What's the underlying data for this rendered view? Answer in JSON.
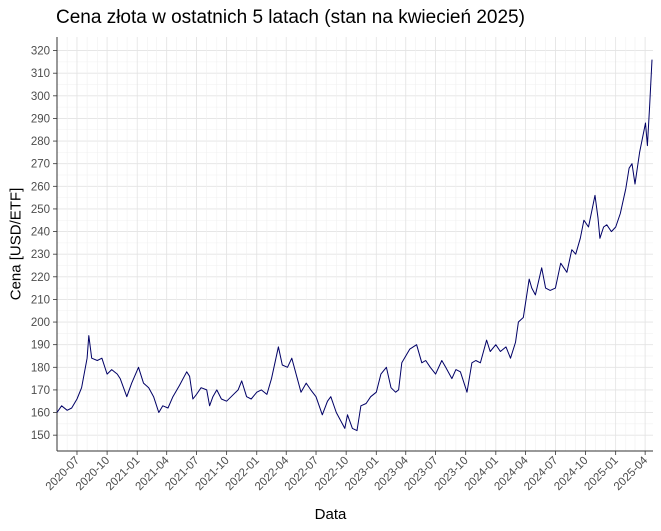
{
  "chart_data": {
    "type": "line",
    "title": "Cena złota w ostatnich 5 latach (stan na kwiecień 2025)",
    "xlabel": "Data",
    "ylabel": "Cena [USD/ETF]",
    "xlim": [
      "2020-05-01",
      "2025-04-25"
    ],
    "ylim": [
      143,
      326
    ],
    "yticks": [
      150,
      160,
      170,
      180,
      190,
      200,
      210,
      220,
      230,
      240,
      250,
      260,
      270,
      280,
      290,
      300,
      310,
      320
    ],
    "xticks": [
      "2020-07",
      "2020-10",
      "2021-01",
      "2021-04",
      "2021-07",
      "2021-10",
      "2022-01",
      "2022-04",
      "2022-07",
      "2022-10",
      "2023-01",
      "2023-04",
      "2023-07",
      "2023-10",
      "2024-01",
      "2024-04",
      "2024-07",
      "2024-10",
      "2025-01",
      "2025-04"
    ],
    "grid": true,
    "legend": "none",
    "series": [
      {
        "color": "#000066",
        "points": [
          [
            "2020-05-01",
            160
          ],
          [
            "2020-05-15",
            163
          ],
          [
            "2020-06-01",
            161
          ],
          [
            "2020-06-15",
            162
          ],
          [
            "2020-07-01",
            166
          ],
          [
            "2020-07-15",
            171
          ],
          [
            "2020-08-01",
            184
          ],
          [
            "2020-08-06",
            194
          ],
          [
            "2020-08-15",
            184
          ],
          [
            "2020-09-01",
            183
          ],
          [
            "2020-09-15",
            184
          ],
          [
            "2020-10-01",
            177
          ],
          [
            "2020-10-15",
            179
          ],
          [
            "2020-11-01",
            177
          ],
          [
            "2020-11-10",
            175
          ],
          [
            "2020-11-30",
            167
          ],
          [
            "2020-12-15",
            173
          ],
          [
            "2021-01-05",
            180
          ],
          [
            "2021-01-20",
            173
          ],
          [
            "2021-02-05",
            171
          ],
          [
            "2021-02-20",
            167
          ],
          [
            "2021-03-08",
            160
          ],
          [
            "2021-03-20",
            163
          ],
          [
            "2021-04-05",
            162
          ],
          [
            "2021-04-20",
            167
          ],
          [
            "2021-05-10",
            172
          ],
          [
            "2021-06-01",
            178
          ],
          [
            "2021-06-10",
            176
          ],
          [
            "2021-06-20",
            166
          ],
          [
            "2021-07-01",
            168
          ],
          [
            "2021-07-15",
            171
          ],
          [
            "2021-08-01",
            170
          ],
          [
            "2021-08-10",
            163
          ],
          [
            "2021-08-20",
            167
          ],
          [
            "2021-09-01",
            170
          ],
          [
            "2021-09-15",
            166
          ],
          [
            "2021-10-01",
            165
          ],
          [
            "2021-10-15",
            167
          ],
          [
            "2021-11-05",
            170
          ],
          [
            "2021-11-16",
            174
          ],
          [
            "2021-12-01",
            167
          ],
          [
            "2021-12-15",
            166
          ],
          [
            "2022-01-01",
            169
          ],
          [
            "2022-01-15",
            170
          ],
          [
            "2022-02-01",
            168
          ],
          [
            "2022-02-15",
            175
          ],
          [
            "2022-03-08",
            189
          ],
          [
            "2022-03-20",
            181
          ],
          [
            "2022-04-05",
            180
          ],
          [
            "2022-04-18",
            184
          ],
          [
            "2022-05-01",
            177
          ],
          [
            "2022-05-16",
            169
          ],
          [
            "2022-06-01",
            173
          ],
          [
            "2022-06-15",
            170
          ],
          [
            "2022-07-01",
            167
          ],
          [
            "2022-07-20",
            159
          ],
          [
            "2022-08-05",
            165
          ],
          [
            "2022-08-15",
            167
          ],
          [
            "2022-09-01",
            160
          ],
          [
            "2022-09-27",
            153
          ],
          [
            "2022-10-05",
            159
          ],
          [
            "2022-10-20",
            153
          ],
          [
            "2022-11-03",
            152
          ],
          [
            "2022-11-15",
            163
          ],
          [
            "2022-12-01",
            164
          ],
          [
            "2022-12-15",
            167
          ],
          [
            "2023-01-01",
            169
          ],
          [
            "2023-01-15",
            177
          ],
          [
            "2023-02-01",
            180
          ],
          [
            "2023-02-15",
            171
          ],
          [
            "2023-03-01",
            169
          ],
          [
            "2023-03-10",
            170
          ],
          [
            "2023-03-20",
            182
          ],
          [
            "2023-04-13",
            188
          ],
          [
            "2023-05-04",
            190
          ],
          [
            "2023-05-20",
            182
          ],
          [
            "2023-06-01",
            183
          ],
          [
            "2023-06-15",
            180
          ],
          [
            "2023-07-01",
            177
          ],
          [
            "2023-07-20",
            183
          ],
          [
            "2023-08-01",
            180
          ],
          [
            "2023-08-20",
            175
          ],
          [
            "2023-09-01",
            179
          ],
          [
            "2023-09-15",
            178
          ],
          [
            "2023-10-05",
            169
          ],
          [
            "2023-10-20",
            182
          ],
          [
            "2023-11-01",
            183
          ],
          [
            "2023-11-15",
            182
          ],
          [
            "2023-12-04",
            192
          ],
          [
            "2023-12-15",
            187
          ],
          [
            "2024-01-01",
            190
          ],
          [
            "2024-01-15",
            187
          ],
          [
            "2024-02-01",
            189
          ],
          [
            "2024-02-15",
            184
          ],
          [
            "2024-03-01",
            191
          ],
          [
            "2024-03-10",
            200
          ],
          [
            "2024-03-25",
            202
          ],
          [
            "2024-04-12",
            219
          ],
          [
            "2024-04-20",
            215
          ],
          [
            "2024-05-01",
            212
          ],
          [
            "2024-05-20",
            224
          ],
          [
            "2024-06-01",
            215
          ],
          [
            "2024-06-15",
            214
          ],
          [
            "2024-07-01",
            215
          ],
          [
            "2024-07-17",
            226
          ],
          [
            "2024-08-05",
            222
          ],
          [
            "2024-08-20",
            232
          ],
          [
            "2024-09-01",
            230
          ],
          [
            "2024-09-15",
            237
          ],
          [
            "2024-09-26",
            245
          ],
          [
            "2024-10-10",
            242
          ],
          [
            "2024-10-30",
            256
          ],
          [
            "2024-11-08",
            246
          ],
          [
            "2024-11-14",
            237
          ],
          [
            "2024-11-25",
            242
          ],
          [
            "2024-12-05",
            243
          ],
          [
            "2024-12-19",
            240
          ],
          [
            "2025-01-01",
            242
          ],
          [
            "2025-01-15",
            248
          ],
          [
            "2025-02-01",
            259
          ],
          [
            "2025-02-11",
            268
          ],
          [
            "2025-02-20",
            270
          ],
          [
            "2025-03-01",
            261
          ],
          [
            "2025-03-15",
            275
          ],
          [
            "2025-04-02",
            288
          ],
          [
            "2025-04-08",
            278
          ],
          [
            "2025-04-15",
            296
          ],
          [
            "2025-04-22",
            316
          ]
        ]
      }
    ]
  }
}
